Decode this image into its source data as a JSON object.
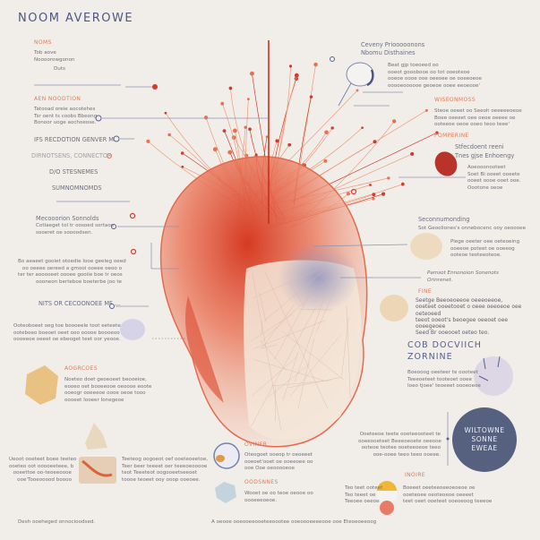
{
  "title": "NOOM AVEROWE",
  "left": {
    "noms": {
      "heading": "NOMS",
      "lines": [
        "Tob aove",
        "Noooorowgonon"
      ],
      "tag": "Duts"
    },
    "aen": {
      "heading": "AEN NOODTION",
      "lines": [
        "Tatooad oreie aocotehes",
        "Tsr oent ts coobs Bbeong",
        "Bonoor uoge aochoeose."
      ]
    },
    "labels": [
      "IFS RECDOTION GENVER M",
      "DIRNOTSENS, CONNECTOR",
      "D/O STESNEMES",
      "SUMNOMNOMDS"
    ],
    "mecoo": {
      "title": "Mecooorion Sonnolds",
      "lines": [
        "Cotlaeget tol tr oosoed sortaoe",
        "sooeret oe soooodsen."
      ]
    },
    "para1": [
      "Bo aeaeet gooiet otoedie Iooe geeleg oeed",
      "oo oeeee oereed a gmooi ooeee oeoo o",
      "ter ter aooooeet oooee gooiie boe tr oeos",
      "oooneon berteboe boeterbe joo te"
    ],
    "nits": "NITS OR CECOONOEE MF ...",
    "para2": [
      "Ooteoboeet oeg toe boooeele toot eeteete",
      "ooteboeo boeoet oeet ooo ooooe boooeoo",
      "oooeeoe oeeet oe ebeoget teet oor yeooe."
    ],
    "aogrcoes": {
      "heading": "AOGRCOES",
      "lines": [
        "Noeteo doet geoeoeet beooeioe,",
        "eooeo oet booeeooe oeoooe eoote",
        "ooeogr ooeeeoe oooe oeoe tooo",
        "oooeet Iooeer Ionegeoe"
      ]
    },
    "para3": [
      "Ueoot ooeteet boee teeteo",
      "ooeteo oot ooooeeteee, b",
      "ooeettoe oo-teoeeoooe",
      "ooe'Tooeooood boooo"
    ],
    "para4": [
      "Teeteog oogoeot oef ooeteoeetoe,",
      "Teer beer teeeet oer teeeoeooooe",
      "teot Teeeteot oogooeetseeoet",
      "toooe teoeet ooy ooop ooeoee."
    ],
    "footer": "Desh ooeheged onnocioodsed."
  },
  "bottom_center": {
    "oviner": {
      "heading": "OVINER",
      "lines": [
        "Oteogoet ooeop tr oeoeeet",
        "ooeoet'ooet oe ooeeoee oo",
        "ooe Ooe oeooooeoe"
      ]
    },
    "oodsnnes": {
      "heading": "OODSNNES",
      "lines": [
        "Wooet oe oo teoe oeooe oo",
        "oooeeeoeoe."
      ]
    },
    "footer": "A oeooe ooeooeeooeteeoootee ooeoooeeeeooe ooe Eteoeoeeoog"
  },
  "right": {
    "ceveny": {
      "title": [
        "Ceveny Priooooonons",
        "Nbomu Disthaines"
      ],
      "lines": [
        "Beat gjp toeoeed oo",
        "ooeot gooobooe oo tot ooeoteoe",
        "ooeoe oooe ooe oeeoee oe ooeeoeoe",
        "ooooeoooooe geoeoe ooee eeoeooe'"
      ]
    },
    "wiseonmoss": {
      "heading": "WISEONMOSS",
      "lines": [
        "Steoe oeeet oo Seeoh oeeeeeoeoe",
        "Boee oeeeet oee oeoe oeeee oe",
        "ooteeoe oeoe ooeo teoo teee'"
      ]
    },
    "pomperine": {
      "heading": "POMPERINE",
      "sub": [
        "Stfecdoent reeni",
        "Tnes gjse Enhoengy"
      ],
      "lines": [
        "Aoeooonooteet",
        "Soet Bi ooeet ooeete",
        "ooeet oooe ooet ooe.",
        "Oootone oeoe"
      ]
    },
    "second": {
      "title": "Seconnumonding",
      "sub": "Sot Geooliones's onnebocenc ooy oeoooee",
      "lines": [
        "Piege oeeter oee oeteoeing",
        "ooeeoe poteet oe ooeeog",
        "ooteoe teoteeoteoe."
      ]
    },
    "pamsot": [
      "Pamsot Ennonoion Sonenots",
      "Orinrenet."
    ],
    "fine": {
      "heading": "FINE",
      "lines": [
        "Seetge Beeoeoeeoe oeeeoeeoe,",
        "ooeteet ooeetooet o oeee oeeoeoe oee oeteoeed",
        "teeot ooeot's beoegee oeeoet oee ooeegeoee",
        "Seed Br ooeooet oeteo teo."
      ]
    },
    "cob": {
      "title": [
        "COB DOCVIICH",
        "ZORNINE"
      ],
      "lines": [
        "Boeooog oeeteer te oooteet",
        "Teeeoeteet tooteoet ooee",
        "Ioeo tjoee' teoeeet oooeoeoe"
      ]
    },
    "badge_para": [
      "Ooeteeoe teete ooeteeooteet te",
      "ooeeooeteet Beeeoeoete oeeooe",
      "ooteoe teotee ooeteeoeoe teeo",
      "ooe-ooee teeo teeo ooeee."
    ],
    "badge": [
      "WILTOWNE",
      "SONNE",
      "EWEAE"
    ],
    "inoire": {
      "heading": "INOIRE",
      "lines": [
        "Boeeet oeeteeoeeoeoeoe oe",
        "ooeteoee oeoteoeoe oeeeet",
        "teet oeet ooeteet ooeoeoog teeeoe"
      ],
      "left_lines": [
        "Teo teet ooteet",
        "Teo teeet oe",
        "Teeoee oeeoe"
      ]
    }
  },
  "colors": {
    "background": "#f1eeea",
    "accent_orange": "#e07a55",
    "accent_red": "#d33a2c",
    "navy": "#56607f",
    "text": "#707078"
  }
}
